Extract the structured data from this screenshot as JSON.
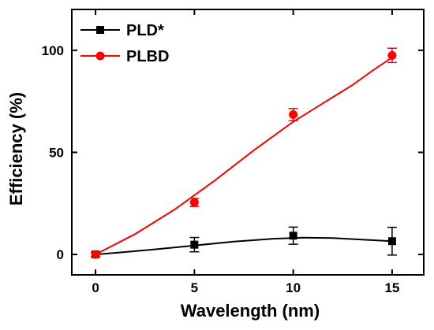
{
  "chart_data": {
    "type": "line",
    "xlabel": "Wavelength (nm)",
    "ylabel": "Efficiency (%)",
    "xlim": [
      -1.2,
      16.6
    ],
    "ylim": [
      -10,
      120
    ],
    "xticks": [
      0,
      5,
      10,
      15
    ],
    "yticks": [
      0,
      50,
      100
    ],
    "grid": false,
    "legend_position": "top-left",
    "series": [
      {
        "name": "PLD*",
        "color": "#000000",
        "marker": "square",
        "x": [
          0,
          5,
          10,
          15
        ],
        "y": [
          0,
          4.8,
          9.2,
          6.5
        ],
        "error": [
          1,
          3.5,
          4.2,
          6.8
        ],
        "fit": [
          [
            0,
            0
          ],
          [
            1.5,
            1.2
          ],
          [
            3,
            2.5
          ],
          [
            5,
            4.4
          ],
          [
            7,
            6.3
          ],
          [
            9,
            7.7
          ],
          [
            10.5,
            8.2
          ],
          [
            12,
            8.0
          ],
          [
            13.5,
            7.3
          ],
          [
            15,
            6.5
          ]
        ]
      },
      {
        "name": "PLBD",
        "color": "#ff0000",
        "marker": "circle",
        "x": [
          0,
          5,
          10,
          15
        ],
        "y": [
          0,
          25.5,
          68.5,
          97.5
        ],
        "error": [
          1,
          2,
          3,
          3.5
        ],
        "fit": [
          [
            0,
            0
          ],
          [
            2,
            10
          ],
          [
            4,
            22
          ],
          [
            6,
            36
          ],
          [
            8,
            51
          ],
          [
            10,
            65
          ],
          [
            11.5,
            74
          ],
          [
            13,
            83
          ],
          [
            14,
            90
          ],
          [
            15,
            96.5
          ]
        ]
      }
    ]
  }
}
